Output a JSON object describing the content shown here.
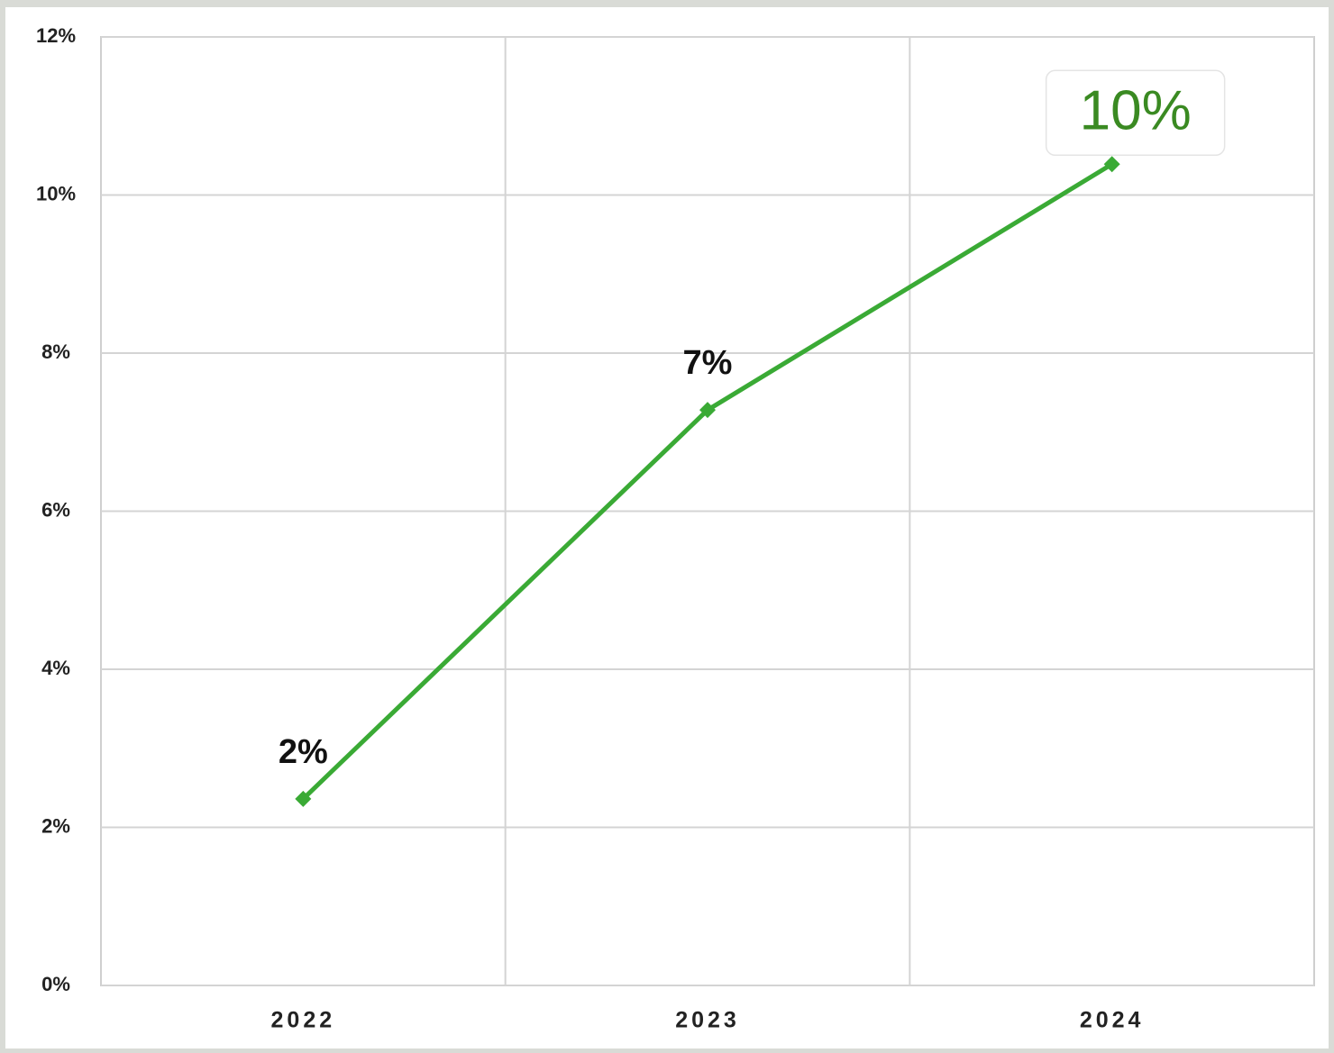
{
  "chart_data": {
    "type": "line",
    "categories": [
      "2022",
      "2023",
      "2024"
    ],
    "series": [
      {
        "color": "#3aaa35",
        "values": [
          2.36,
          7.28,
          10.39
        ],
        "value_labels": [
          "2%",
          "7%",
          "10%"
        ]
      }
    ],
    "ylim": [
      0,
      12
    ],
    "yticks": [
      {
        "value": 0,
        "label": "0%"
      },
      {
        "value": 2,
        "label": "2%"
      },
      {
        "value": 4,
        "label": "4%"
      },
      {
        "value": 6,
        "label": "6%"
      },
      {
        "value": 8,
        "label": "8%"
      },
      {
        "value": 10,
        "label": "10%"
      },
      {
        "value": 12,
        "label": "12%"
      }
    ],
    "grid": true
  }
}
